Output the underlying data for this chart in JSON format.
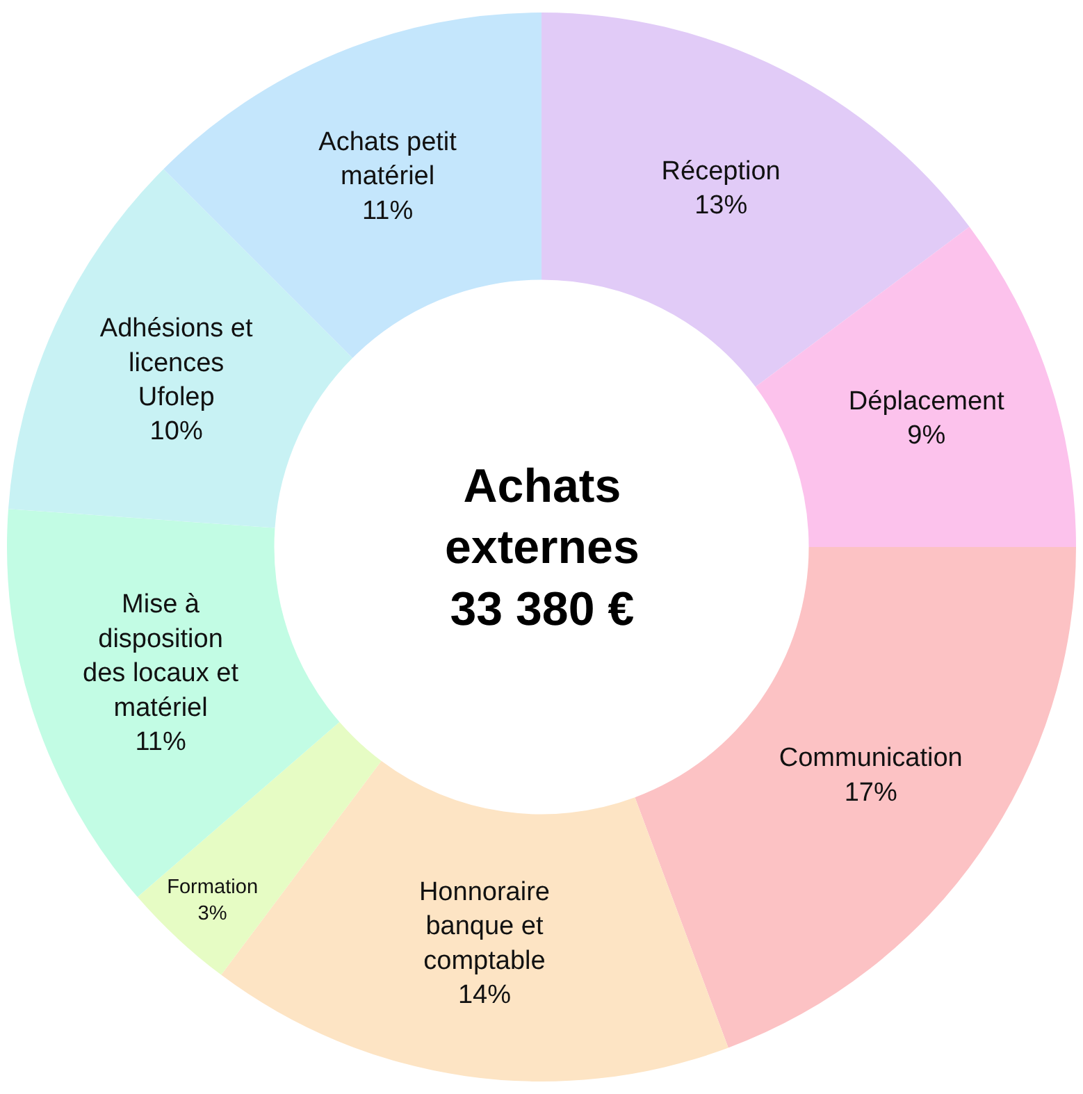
{
  "chart_data": {
    "type": "donut",
    "title": "Achats externes 33 380 €",
    "categories": [
      "Réception",
      "Déplacement",
      "Communication",
      "Honnoraire banque et comptable",
      "Formation",
      "Mise à disposition des locaux et matériel",
      "Adhésions et licences Ufolep",
      "Achats petit matériel"
    ],
    "values": [
      13,
      9,
      17,
      14,
      3,
      11,
      10,
      11
    ],
    "value_labels": [
      "13%",
      "9%",
      "17%",
      "14%",
      "3%",
      "11%",
      "10%",
      "11%"
    ],
    "colors": [
      "#e1cbf7",
      "#fcc2ec",
      "#fcc2c4",
      "#fde4c4",
      "#e6fcc4",
      "#c2fce4",
      "#c8f2f4",
      "#c4e6fc"
    ],
    "legend": false
  }
}
